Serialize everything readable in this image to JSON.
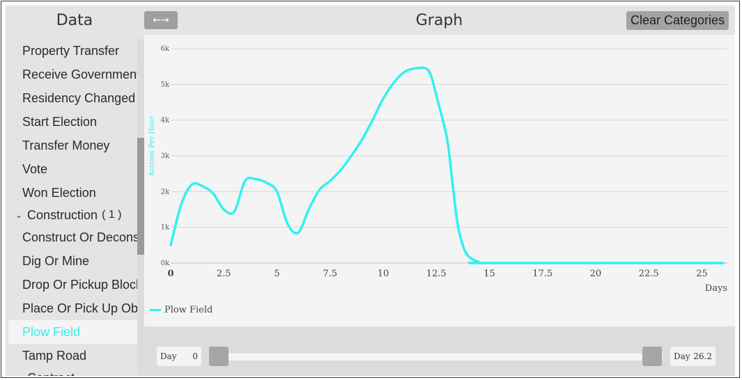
{
  "left_panel": {
    "title": "Data",
    "items": [
      {
        "kind": "item",
        "label": "Property Transfer",
        "selected": false
      },
      {
        "kind": "item",
        "label": "Receive Government",
        "selected": false
      },
      {
        "kind": "item",
        "label": "Residency Changed",
        "selected": false
      },
      {
        "kind": "item",
        "label": "Start Election",
        "selected": false
      },
      {
        "kind": "item",
        "label": "Transfer Money",
        "selected": false
      },
      {
        "kind": "item",
        "label": "Vote",
        "selected": false
      },
      {
        "kind": "item",
        "label": "Won Election",
        "selected": false
      },
      {
        "kind": "group",
        "label": "Construction",
        "count": "( 1 )",
        "expanded": true
      },
      {
        "kind": "item",
        "label": "Construct Or Deconstruct",
        "selected": false
      },
      {
        "kind": "item",
        "label": "Dig Or Mine",
        "selected": false
      },
      {
        "kind": "item",
        "label": "Drop Or Pickup Block",
        "selected": false
      },
      {
        "kind": "item",
        "label": "Place Or Pick Up Object",
        "selected": false
      },
      {
        "kind": "item",
        "label": "Plow Field",
        "selected": true
      },
      {
        "kind": "item",
        "label": "Tamp Road",
        "selected": false
      },
      {
        "kind": "group",
        "label": "Contract",
        "count": "",
        "expanded": false
      }
    ]
  },
  "header": {
    "swap_label": "←→",
    "graph_title": "Graph",
    "clear_label": "Clear Categories"
  },
  "chart_data": {
    "type": "line",
    "title": "",
    "xlabel": "Days",
    "ylabel": "Actions Per Hour",
    "xlim": [
      0,
      26.2
    ],
    "ylim": [
      0,
      6000
    ],
    "x_ticks": [
      "0",
      "2.5",
      "5",
      "7.5",
      "10",
      "12.5",
      "15",
      "17.5",
      "20",
      "22.5",
      "25"
    ],
    "y_ticks": [
      "0k",
      "1k",
      "2k",
      "3k",
      "4k",
      "5k",
      "6k"
    ],
    "grid": true,
    "legend_position": "bottom-left",
    "series": [
      {
        "name": "Plow Field",
        "color": "#33f0f0",
        "x": [
          0,
          0.5,
          1,
          1.5,
          2,
          2.5,
          3,
          3.5,
          4,
          4.5,
          5,
          5.5,
          6,
          6.5,
          7,
          7.5,
          8,
          8.5,
          9,
          9.5,
          10,
          10.5,
          11,
          11.5,
          12,
          12.25,
          12.5,
          13,
          13.25,
          13.5,
          13.75,
          14,
          14.5,
          15,
          26
        ],
        "y": [
          500,
          1650,
          2200,
          2150,
          1950,
          1500,
          1450,
          2300,
          2350,
          2250,
          2000,
          1100,
          850,
          1500,
          2050,
          2300,
          2600,
          3000,
          3450,
          4000,
          4600,
          5050,
          5350,
          5450,
          5450,
          5250,
          4700,
          3500,
          2300,
          1100,
          500,
          200,
          30,
          0,
          0
        ]
      }
    ]
  },
  "slider": {
    "min_label": "Day",
    "min_value": "0",
    "max_label": "Day",
    "max_value": "26.2"
  }
}
